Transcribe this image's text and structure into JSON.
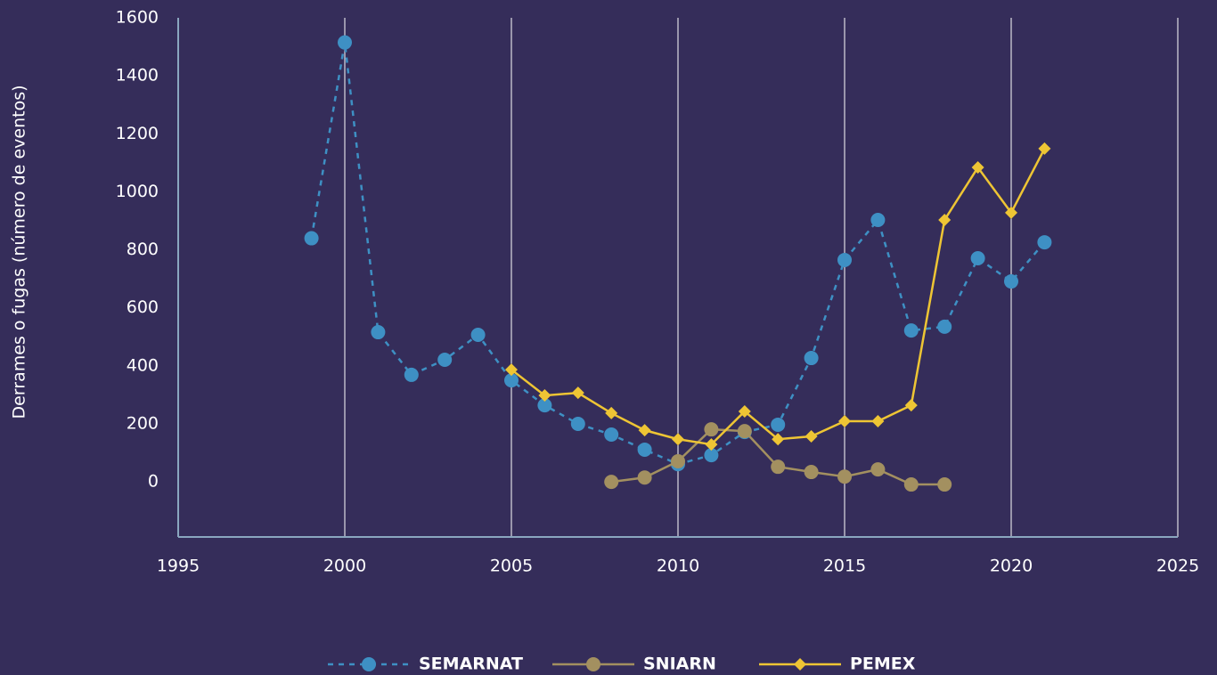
{
  "chart_data": {
    "type": "line",
    "y_label": "Derrames o fugas (número de eventos)",
    "x": [
      1999,
      2000,
      2001,
      2002,
      2003,
      2004,
      2005,
      2006,
      2007,
      2008,
      2009,
      2010,
      2011,
      2012,
      2013,
      2014,
      2015,
      2016,
      2017,
      2018,
      2019,
      2020,
      2021
    ],
    "series": [
      {
        "name": "SEMARNAT",
        "color": "#3e90c4",
        "dashed": true,
        "marker": "circle",
        "values": [
          840,
          1515,
          516,
          369,
          421,
          507,
          350,
          264,
          200,
          163,
          111,
          61,
          92,
          172,
          197,
          427,
          765,
          903,
          522,
          535,
          771,
          691,
          826
        ]
      },
      {
        "name": "SNIARN",
        "color": "#a39060",
        "dashed": false,
        "marker": "circle",
        "values": [
          null,
          null,
          null,
          null,
          null,
          null,
          null,
          null,
          null,
          0,
          15,
          71,
          181,
          175,
          52,
          34,
          18,
          43,
          -9,
          -9,
          null,
          null,
          null
        ]
      },
      {
        "name": "PEMEX",
        "color": "#eec534",
        "dashed": false,
        "marker": "diamond",
        "values": [
          null,
          null,
          null,
          null,
          null,
          null,
          387,
          298,
          307,
          237,
          178,
          147,
          129,
          243,
          147,
          157,
          209,
          209,
          264,
          903,
          1084,
          928,
          1149
        ]
      }
    ],
    "xlim": [
      1995,
      2025
    ],
    "xticks": [
      1995,
      2000,
      2005,
      2010,
      2015,
      2020,
      2025
    ],
    "ylim": [
      -190,
      1600
    ],
    "yticks": [
      0,
      200,
      400,
      600,
      800,
      1000,
      1200,
      1400,
      1600
    ],
    "grid": "x",
    "legend": "bottom"
  }
}
